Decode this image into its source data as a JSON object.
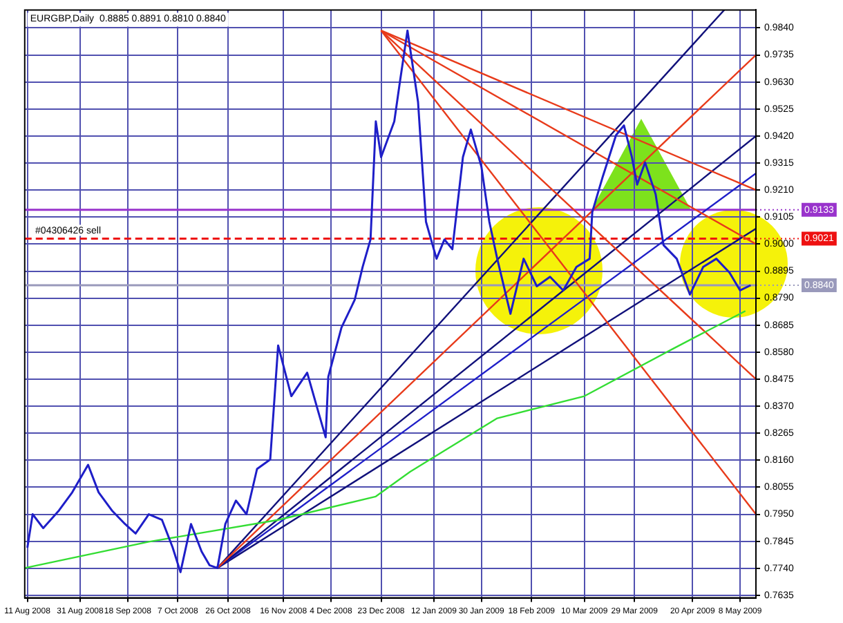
{
  "chart_data": {
    "type": "line",
    "title": "EURGBP,Daily  0.8885 0.8891 0.8810 0.8840",
    "xlim": [
      "2008-08-10",
      "2009-05-14"
    ],
    "xticks": [
      {
        "value": "2008-08-11",
        "label": "11 Aug 2008"
      },
      {
        "value": "2008-08-31",
        "label": "31 Aug 2008"
      },
      {
        "value": "2008-09-18",
        "label": "18 Sep 2008"
      },
      {
        "value": "2008-10-07",
        "label": "7 Oct 2008"
      },
      {
        "value": "2008-10-26",
        "label": "26 Oct 2008"
      },
      {
        "value": "2008-11-16",
        "label": "16 Nov 2008"
      },
      {
        "value": "2008-12-04",
        "label": "4 Dec 2008"
      },
      {
        "value": "2008-12-23",
        "label": "23 Dec 2008"
      },
      {
        "value": "2009-01-12",
        "label": "12 Jan 2009"
      },
      {
        "value": "2009-01-30",
        "label": "30 Jan 2009"
      },
      {
        "value": "2009-02-18",
        "label": "18 Feb 2009"
      },
      {
        "value": "2009-03-10",
        "label": "10 Mar 2009"
      },
      {
        "value": "2009-03-29",
        "label": "29 Mar 2009"
      },
      {
        "value": "2009-04-20",
        "label": "20 Apr 2009"
      },
      {
        "value": "2009-05-08",
        "label": "8 May 2009"
      }
    ],
    "ylim": [
      0.7625,
      0.991
    ],
    "yticks": [
      {
        "value": 0.984,
        "label": "0.9840"
      },
      {
        "value": 0.9735,
        "label": "0.9735"
      },
      {
        "value": 0.963,
        "label": "0.9630"
      },
      {
        "value": 0.9525,
        "label": "0.9525"
      },
      {
        "value": 0.942,
        "label": "0.9420"
      },
      {
        "value": 0.9315,
        "label": "0.9315"
      },
      {
        "value": 0.921,
        "label": "0.9210"
      },
      {
        "value": 0.9105,
        "label": "0.9105"
      },
      {
        "value": 0.9,
        "label": "0.9000"
      },
      {
        "value": 0.8895,
        "label": "0.8895"
      },
      {
        "value": 0.879,
        "label": "0.8790"
      },
      {
        "value": 0.8685,
        "label": "0.8685"
      },
      {
        "value": 0.858,
        "label": "0.8580"
      },
      {
        "value": 0.8475,
        "label": "0.8475"
      },
      {
        "value": 0.837,
        "label": "0.8370"
      },
      {
        "value": 0.8265,
        "label": "0.8265"
      },
      {
        "value": 0.816,
        "label": "0.8160"
      },
      {
        "value": 0.8055,
        "label": "0.8055"
      },
      {
        "value": 0.795,
        "label": "0.7950"
      },
      {
        "value": 0.7845,
        "label": "0.7845"
      },
      {
        "value": 0.774,
        "label": "0.7740"
      },
      {
        "value": 0.7635,
        "label": "0.7635"
      }
    ],
    "grid": true,
    "legend": false,
    "marker": "none",
    "line_style": "solid",
    "series": [
      {
        "color": "#1e1ec8",
        "x": [
          "2008-08-11",
          "2008-08-13",
          "2008-08-17",
          "2008-08-23",
          "2008-08-28",
          "2008-09-03",
          "2008-09-07",
          "2008-09-12",
          "2008-09-17",
          "2008-09-21",
          "2008-09-26",
          "2008-10-01",
          "2008-10-05",
          "2008-10-08",
          "2008-10-12",
          "2008-10-16",
          "2008-10-19",
          "2008-10-22",
          "2008-10-25",
          "2008-10-29",
          "2008-11-02",
          "2008-11-06",
          "2008-11-11",
          "2008-11-14",
          "2008-11-19",
          "2008-11-25",
          "2008-11-29",
          "2008-12-02",
          "2008-12-03",
          "2008-12-08",
          "2008-12-13",
          "2008-12-16",
          "2008-12-19",
          "2008-12-21",
          "2008-12-23",
          "2008-12-28",
          "2008-12-30",
          "2009-01-02",
          "2009-01-06",
          "2009-01-09",
          "2009-01-13",
          "2009-01-16",
          "2009-01-19",
          "2009-01-23",
          "2009-01-26",
          "2009-01-30",
          "2009-02-02",
          "2009-02-05",
          "2009-02-10",
          "2009-02-15",
          "2009-02-20",
          "2009-02-25",
          "2009-03-02",
          "2009-03-07",
          "2009-03-12",
          "2009-03-13",
          "2009-03-17",
          "2009-03-22",
          "2009-03-25",
          "2009-03-28",
          "2009-03-30",
          "2009-04-02",
          "2009-04-06",
          "2009-04-09",
          "2009-04-14",
          "2009-04-19",
          "2009-04-24",
          "2009-04-29",
          "2009-05-04",
          "2009-05-08",
          "2009-05-12"
        ],
        "values": [
          0.782,
          0.795,
          0.7896,
          0.7965,
          0.8035,
          0.8142,
          0.8035,
          0.7965,
          0.7912,
          0.7875,
          0.795,
          0.7928,
          0.7822,
          0.7725,
          0.7912,
          0.7805,
          0.7752,
          0.7741,
          0.7912,
          0.8003,
          0.795,
          0.8126,
          0.8163,
          0.8606,
          0.8409,
          0.85,
          0.8356,
          0.8249,
          0.8484,
          0.8676,
          0.8783,
          0.8911,
          0.9018,
          0.9477,
          0.9338,
          0.9477,
          0.9621,
          0.983,
          0.9552,
          0.9087,
          0.8943,
          0.9018,
          0.898,
          0.9338,
          0.9445,
          0.9301,
          0.9087,
          0.8943,
          0.8729,
          0.8943,
          0.8836,
          0.8873,
          0.882,
          0.8911,
          0.8943,
          0.9124,
          0.9263,
          0.9423,
          0.9461,
          0.9338,
          0.9231,
          0.9317,
          0.9194,
          0.8996,
          0.8943,
          0.8804,
          0.8911,
          0.8943,
          0.8889,
          0.882,
          0.884
        ]
      },
      {
        "color": "#33dd33",
        "x": [
          "2008-08-10",
          "2008-09-26",
          "2008-11-14",
          "2008-12-21",
          "2009-01-03",
          "2009-02-05",
          "2009-03-10",
          "2009-04-12",
          "2009-05-10"
        ],
        "values": [
          0.7741,
          0.7843,
          0.7928,
          0.8019,
          0.8115,
          0.8323,
          0.8409,
          0.859,
          0.874
        ]
      },
      {
        "color": "#e83a1a",
        "x": [
          "2008-12-23",
          "2009-05-14"
        ],
        "values": [
          0.983,
          0.921
        ]
      },
      {
        "color": "#e83a1a",
        "x": [
          "2008-12-23",
          "2009-05-14"
        ],
        "values": [
          0.983,
          0.9
        ]
      },
      {
        "color": "#e83a1a",
        "x": [
          "2008-12-23",
          "2009-05-14"
        ],
        "values": [
          0.983,
          0.8475
        ]
      },
      {
        "color": "#e83a1a",
        "x": [
          "2008-12-23",
          "2009-05-14"
        ],
        "values": [
          0.983,
          0.795
        ]
      },
      {
        "color": "#e83a1a",
        "x": [
          "2008-10-22",
          "2009-05-14"
        ],
        "values": [
          0.7741,
          0.9735
        ]
      },
      {
        "color": "#10107a",
        "x": [
          "2008-10-22",
          "2009-05-02"
        ],
        "values": [
          0.7741,
          0.991
        ]
      },
      {
        "color": "#10107a",
        "x": [
          "2008-10-22",
          "2009-05-14"
        ],
        "values": [
          0.7741,
          0.942
        ]
      },
      {
        "color": "#1e1ec8",
        "x": [
          "2008-10-22",
          "2009-05-14"
        ],
        "values": [
          0.7741,
          0.9275
        ]
      },
      {
        "color": "#10107a",
        "x": [
          "2008-10-22",
          "2009-05-14"
        ],
        "values": [
          0.7741,
          0.906
        ]
      }
    ],
    "ref_lines": [
      {
        "axis": "y",
        "value": 0.9133,
        "label": "0.9133",
        "color": "#9933cc",
        "line_style": "solid"
      },
      {
        "axis": "y",
        "value": 0.9021,
        "label": "0.9021",
        "color": "#ee1111",
        "line_style": "dashed"
      },
      {
        "axis": "y",
        "value": 0.884,
        "label": "0.8840",
        "color": "#9999bb",
        "line_style": "solid"
      }
    ],
    "annotations": [
      {
        "text": "#04306426 sell",
        "x": "2008-08-14",
        "y": 0.9021
      }
    ]
  }
}
